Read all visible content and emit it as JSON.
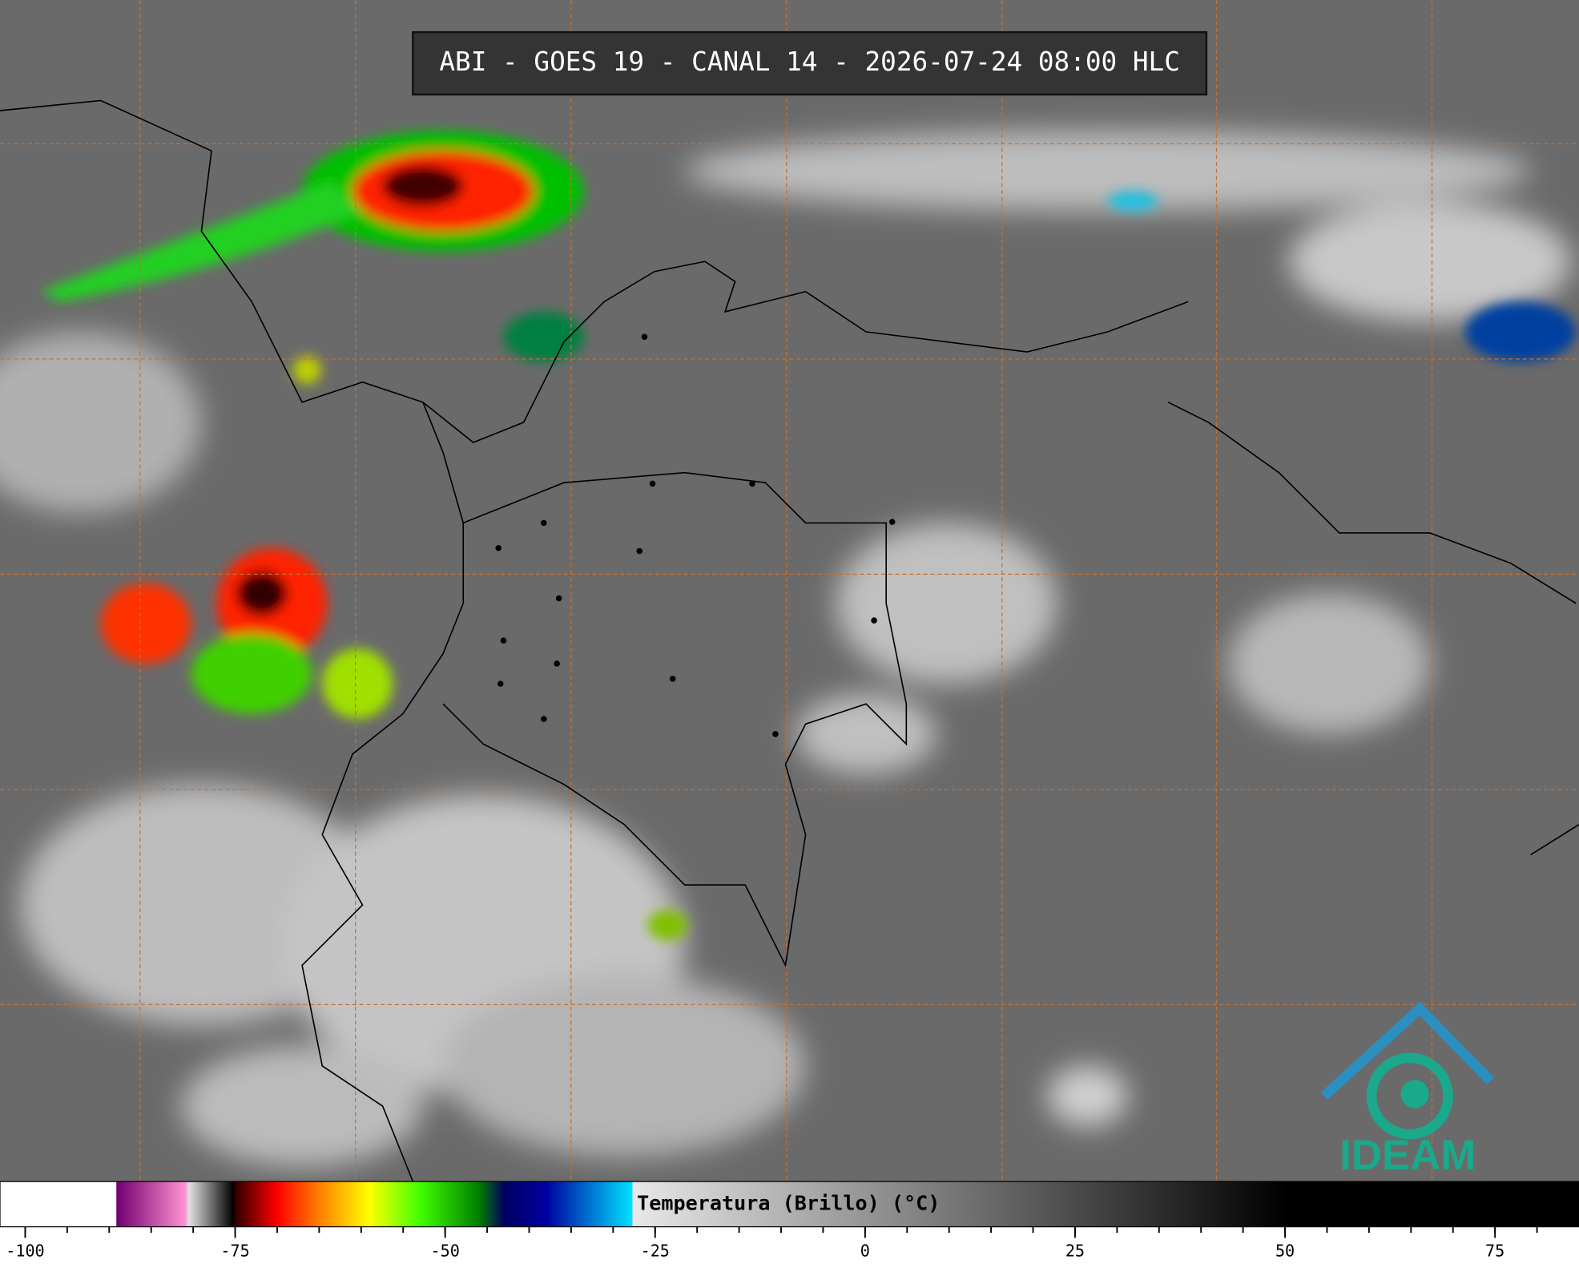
{
  "header": {
    "title": "ABI - GOES 19 - CANAL 14 - 2026-07-24 08:00 HLC"
  },
  "colorbar": {
    "label": "Temperatura (Brillo) (°C)",
    "lim": [
      -103,
      85
    ],
    "ticks": [
      -100,
      -75,
      -50,
      -25,
      0,
      25,
      50,
      75
    ],
    "minor_ticks": [
      -100,
      -95,
      -90,
      -85,
      -80,
      -75,
      -70,
      -65,
      -60,
      -55,
      -50,
      -45,
      -40,
      -35,
      -30,
      -25,
      -20,
      -15,
      -10,
      -5,
      0,
      5,
      10,
      15,
      20,
      25,
      30,
      35,
      40,
      45,
      50,
      55,
      60,
      65,
      70,
      75,
      80
    ],
    "stops": [
      {
        "value": -103,
        "color": "#ffffff"
      },
      {
        "value": -89.2,
        "color": "#ffffff"
      },
      {
        "value": -89.1,
        "color": "#700070"
      },
      {
        "value": -81,
        "color": "#ff90d0"
      },
      {
        "value": -80.5,
        "color": "#e0e0e0"
      },
      {
        "value": -75.2,
        "color": "#000000"
      },
      {
        "value": -75,
        "color": "#300000"
      },
      {
        "value": -70,
        "color": "#ff0000"
      },
      {
        "value": -65,
        "color": "#ff8000"
      },
      {
        "value": -59,
        "color": "#ffff00"
      },
      {
        "value": -53,
        "color": "#40ff00"
      },
      {
        "value": -46,
        "color": "#008000"
      },
      {
        "value": -43,
        "color": "#000060"
      },
      {
        "value": -38,
        "color": "#0000a0"
      },
      {
        "value": -27.8,
        "color": "#00e0ff"
      },
      {
        "value": -27.6,
        "color": "#e8e8e8"
      },
      {
        "value": 50,
        "color": "#000000"
      },
      {
        "value": 85,
        "color": "#000000"
      }
    ]
  },
  "logo": {
    "text": "IDEAM"
  }
}
